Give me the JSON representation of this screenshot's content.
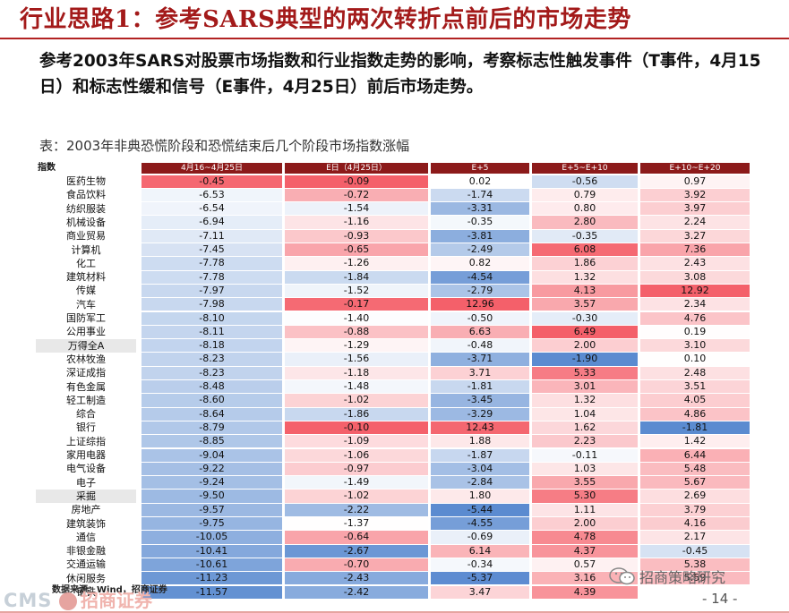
{
  "header": {
    "title": "行业思路1：参考SARS典型的两次转折点前后的市场走势"
  },
  "intro": {
    "text": "参考2003年SARS对股票市场指数和行业指数走势的影响，考察标志性触发事件（T事件，4月15日）和标志性缓和信号（E事件，4月25日）前后市场走势。"
  },
  "table": {
    "caption": "表：2003年非典恐慌阶段和恐慌结束后几个阶段市场指数涨幅",
    "index_label": "指数",
    "columns": [
      "4月16~4月25日",
      "E日（4月25日）",
      "E+5",
      "E+5~E+10",
      "E+10~E+20"
    ],
    "colors": {
      "header_bg": "#8c1a1a",
      "positive_max": "#f4606a",
      "negative_max": "#5b8bd0",
      "neutral": "#ffffff"
    },
    "rows": [
      {
        "name": "医药生物",
        "v": [
          "-0.45",
          "-0.09",
          "0.02",
          "-0.56",
          "0.97"
        ]
      },
      {
        "name": "食品饮料",
        "v": [
          "-6.53",
          "-0.72",
          "-1.74",
          "0.79",
          "3.92"
        ]
      },
      {
        "name": "纺织服装",
        "v": [
          "-6.54",
          "-1.54",
          "-3.31",
          "0.80",
          "3.97"
        ]
      },
      {
        "name": "机械设备",
        "v": [
          "-6.94",
          "-1.16",
          "-0.35",
          "2.80",
          "2.24"
        ]
      },
      {
        "name": "商业贸易",
        "v": [
          "-7.11",
          "-0.93",
          "-3.81",
          "-0.35",
          "3.27"
        ]
      },
      {
        "name": "计算机",
        "v": [
          "-7.45",
          "-0.65",
          "-2.49",
          "6.08",
          "7.36"
        ]
      },
      {
        "name": "化工",
        "v": [
          "-7.78",
          "-1.26",
          "0.82",
          "1.86",
          "2.43"
        ]
      },
      {
        "name": "建筑材料",
        "v": [
          "-7.78",
          "-1.84",
          "-4.54",
          "1.32",
          "3.08"
        ]
      },
      {
        "name": "传媒",
        "v": [
          "-7.97",
          "-1.52",
          "-2.79",
          "4.13",
          "12.92"
        ]
      },
      {
        "name": "汽车",
        "v": [
          "-7.98",
          "-0.17",
          "12.96",
          "3.57",
          "2.34"
        ]
      },
      {
        "name": "国防军工",
        "v": [
          "-8.10",
          "-1.40",
          "-0.50",
          "-0.30",
          "4.76"
        ]
      },
      {
        "name": "公用事业",
        "v": [
          "-8.11",
          "-0.88",
          "6.63",
          "6.49",
          "0.19"
        ]
      },
      {
        "name": "万得全A",
        "v": [
          "-8.18",
          "-1.29",
          "-0.48",
          "2.00",
          "3.10"
        ],
        "shade": true
      },
      {
        "name": "农林牧渔",
        "v": [
          "-8.23",
          "-1.56",
          "-3.71",
          "-1.90",
          "0.10"
        ]
      },
      {
        "name": "深证成指",
        "v": [
          "-8.23",
          "-1.18",
          "3.71",
          "5.33",
          "2.48"
        ]
      },
      {
        "name": "有色金属",
        "v": [
          "-8.48",
          "-1.48",
          "-1.81",
          "3.01",
          "3.51"
        ]
      },
      {
        "name": "轻工制造",
        "v": [
          "-8.60",
          "-1.02",
          "-3.45",
          "1.32",
          "4.05"
        ]
      },
      {
        "name": "综合",
        "v": [
          "-8.64",
          "-1.86",
          "-3.29",
          "1.04",
          "4.86"
        ]
      },
      {
        "name": "银行",
        "v": [
          "-8.79",
          "-0.10",
          "12.43",
          "1.62",
          "-1.81"
        ]
      },
      {
        "name": "上证综指",
        "v": [
          "-8.85",
          "-1.09",
          "1.88",
          "2.23",
          "1.42"
        ]
      },
      {
        "name": "家用电器",
        "v": [
          "-9.04",
          "-1.06",
          "-1.87",
          "-0.11",
          "6.44"
        ]
      },
      {
        "name": "电气设备",
        "v": [
          "-9.22",
          "-0.97",
          "-3.04",
          "1.03",
          "5.48"
        ]
      },
      {
        "name": "电子",
        "v": [
          "-9.24",
          "-1.49",
          "-2.84",
          "3.55",
          "5.67"
        ]
      },
      {
        "name": "采掘",
        "v": [
          "-9.50",
          "-1.02",
          "1.80",
          "5.30",
          "2.69"
        ],
        "shade": true
      },
      {
        "name": "房地产",
        "v": [
          "-9.57",
          "-2.22",
          "-5.44",
          "1.11",
          "3.79"
        ]
      },
      {
        "name": "建筑装饰",
        "v": [
          "-9.75",
          "-1.37",
          "-4.55",
          "2.00",
          "4.16"
        ]
      },
      {
        "name": "通信",
        "v": [
          "-10.05",
          "-0.64",
          "-0.69",
          "4.78",
          "2.17"
        ]
      },
      {
        "name": "非银金融",
        "v": [
          "-10.41",
          "-2.67",
          "6.14",
          "4.37",
          "-0.45"
        ]
      },
      {
        "name": "交通运输",
        "v": [
          "-10.61",
          "-0.70",
          "-0.34",
          "0.57",
          "5.38"
        ]
      },
      {
        "name": "休闲服务",
        "v": [
          "-11.23",
          "-2.43",
          "-5.37",
          "3.16",
          "5.59"
        ]
      },
      {
        "name": "钢铁",
        "v": [
          "-11.57",
          "-2.42",
          "3.47",
          "4.39",
          ""
        ]
      }
    ]
  },
  "footer": {
    "source": "数据来源：Wind，招商证券",
    "logo_cms": "CMS",
    "logo_text": "招商证券",
    "watermark": "招商策略研究",
    "page": "- 14 -"
  }
}
